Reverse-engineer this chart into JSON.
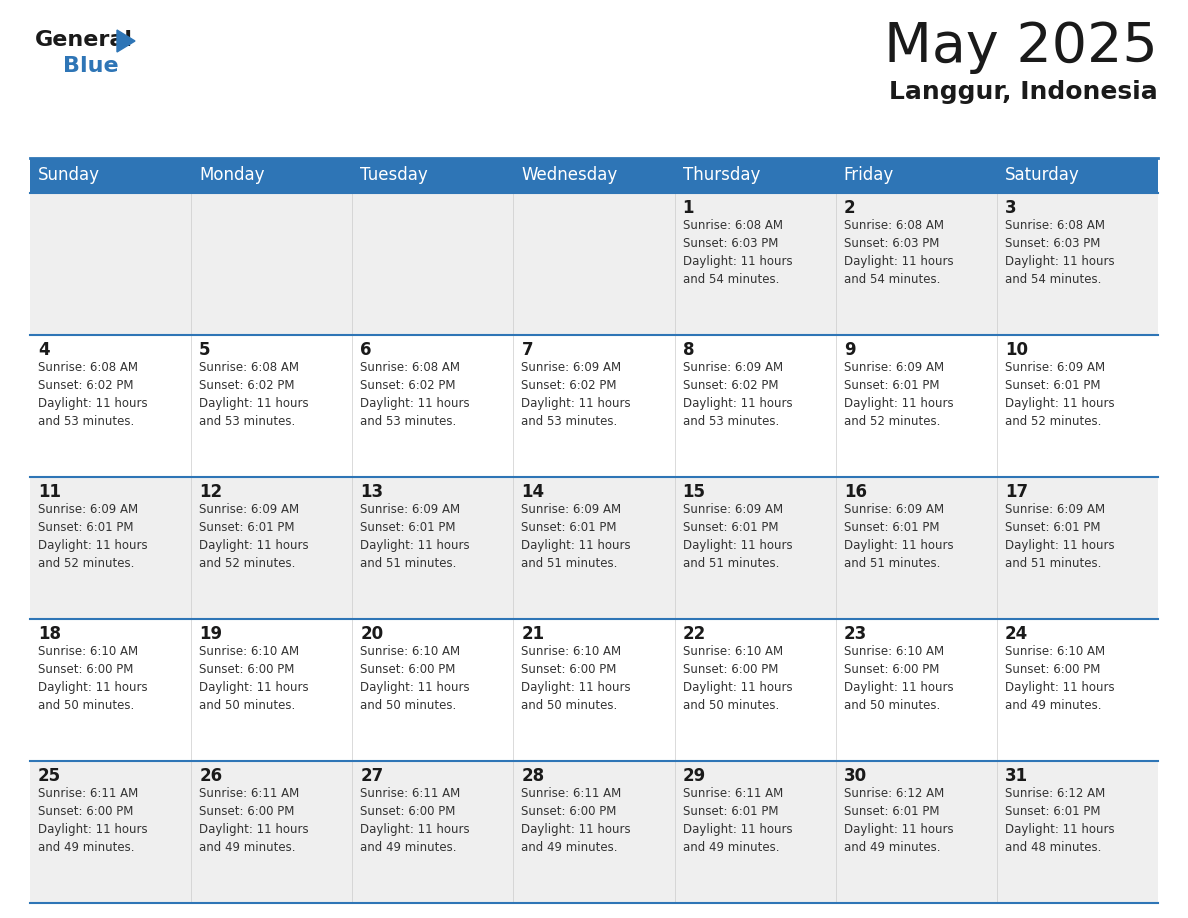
{
  "title": "May 2025",
  "subtitle": "Langgur, Indonesia",
  "header_color": "#2E75B6",
  "header_text_color": "#FFFFFF",
  "bg_color": "#FFFFFF",
  "cell_bg_light": "#EFEFEF",
  "cell_bg_white": "#FFFFFF",
  "day_headers": [
    "Sunday",
    "Monday",
    "Tuesday",
    "Wednesday",
    "Thursday",
    "Friday",
    "Saturday"
  ],
  "title_color": "#1a1a1a",
  "subtitle_color": "#1a1a1a",
  "number_color": "#1a1a1a",
  "text_color": "#333333",
  "grid_line_color": "#2E75B6",
  "sep_line_color": "#AAAAAA",
  "calendar": [
    [
      {
        "day": "",
        "info": ""
      },
      {
        "day": "",
        "info": ""
      },
      {
        "day": "",
        "info": ""
      },
      {
        "day": "",
        "info": ""
      },
      {
        "day": "1",
        "info": "Sunrise: 6:08 AM\nSunset: 6:03 PM\nDaylight: 11 hours\nand 54 minutes."
      },
      {
        "day": "2",
        "info": "Sunrise: 6:08 AM\nSunset: 6:03 PM\nDaylight: 11 hours\nand 54 minutes."
      },
      {
        "day": "3",
        "info": "Sunrise: 6:08 AM\nSunset: 6:03 PM\nDaylight: 11 hours\nand 54 minutes."
      }
    ],
    [
      {
        "day": "4",
        "info": "Sunrise: 6:08 AM\nSunset: 6:02 PM\nDaylight: 11 hours\nand 53 minutes."
      },
      {
        "day": "5",
        "info": "Sunrise: 6:08 AM\nSunset: 6:02 PM\nDaylight: 11 hours\nand 53 minutes."
      },
      {
        "day": "6",
        "info": "Sunrise: 6:08 AM\nSunset: 6:02 PM\nDaylight: 11 hours\nand 53 minutes."
      },
      {
        "day": "7",
        "info": "Sunrise: 6:09 AM\nSunset: 6:02 PM\nDaylight: 11 hours\nand 53 minutes."
      },
      {
        "day": "8",
        "info": "Sunrise: 6:09 AM\nSunset: 6:02 PM\nDaylight: 11 hours\nand 53 minutes."
      },
      {
        "day": "9",
        "info": "Sunrise: 6:09 AM\nSunset: 6:01 PM\nDaylight: 11 hours\nand 52 minutes."
      },
      {
        "day": "10",
        "info": "Sunrise: 6:09 AM\nSunset: 6:01 PM\nDaylight: 11 hours\nand 52 minutes."
      }
    ],
    [
      {
        "day": "11",
        "info": "Sunrise: 6:09 AM\nSunset: 6:01 PM\nDaylight: 11 hours\nand 52 minutes."
      },
      {
        "day": "12",
        "info": "Sunrise: 6:09 AM\nSunset: 6:01 PM\nDaylight: 11 hours\nand 52 minutes."
      },
      {
        "day": "13",
        "info": "Sunrise: 6:09 AM\nSunset: 6:01 PM\nDaylight: 11 hours\nand 51 minutes."
      },
      {
        "day": "14",
        "info": "Sunrise: 6:09 AM\nSunset: 6:01 PM\nDaylight: 11 hours\nand 51 minutes."
      },
      {
        "day": "15",
        "info": "Sunrise: 6:09 AM\nSunset: 6:01 PM\nDaylight: 11 hours\nand 51 minutes."
      },
      {
        "day": "16",
        "info": "Sunrise: 6:09 AM\nSunset: 6:01 PM\nDaylight: 11 hours\nand 51 minutes."
      },
      {
        "day": "17",
        "info": "Sunrise: 6:09 AM\nSunset: 6:01 PM\nDaylight: 11 hours\nand 51 minutes."
      }
    ],
    [
      {
        "day": "18",
        "info": "Sunrise: 6:10 AM\nSunset: 6:00 PM\nDaylight: 11 hours\nand 50 minutes."
      },
      {
        "day": "19",
        "info": "Sunrise: 6:10 AM\nSunset: 6:00 PM\nDaylight: 11 hours\nand 50 minutes."
      },
      {
        "day": "20",
        "info": "Sunrise: 6:10 AM\nSunset: 6:00 PM\nDaylight: 11 hours\nand 50 minutes."
      },
      {
        "day": "21",
        "info": "Sunrise: 6:10 AM\nSunset: 6:00 PM\nDaylight: 11 hours\nand 50 minutes."
      },
      {
        "day": "22",
        "info": "Sunrise: 6:10 AM\nSunset: 6:00 PM\nDaylight: 11 hours\nand 50 minutes."
      },
      {
        "day": "23",
        "info": "Sunrise: 6:10 AM\nSunset: 6:00 PM\nDaylight: 11 hours\nand 50 minutes."
      },
      {
        "day": "24",
        "info": "Sunrise: 6:10 AM\nSunset: 6:00 PM\nDaylight: 11 hours\nand 49 minutes."
      }
    ],
    [
      {
        "day": "25",
        "info": "Sunrise: 6:11 AM\nSunset: 6:00 PM\nDaylight: 11 hours\nand 49 minutes."
      },
      {
        "day": "26",
        "info": "Sunrise: 6:11 AM\nSunset: 6:00 PM\nDaylight: 11 hours\nand 49 minutes."
      },
      {
        "day": "27",
        "info": "Sunrise: 6:11 AM\nSunset: 6:00 PM\nDaylight: 11 hours\nand 49 minutes."
      },
      {
        "day": "28",
        "info": "Sunrise: 6:11 AM\nSunset: 6:00 PM\nDaylight: 11 hours\nand 49 minutes."
      },
      {
        "day": "29",
        "info": "Sunrise: 6:11 AM\nSunset: 6:01 PM\nDaylight: 11 hours\nand 49 minutes."
      },
      {
        "day": "30",
        "info": "Sunrise: 6:12 AM\nSunset: 6:01 PM\nDaylight: 11 hours\nand 49 minutes."
      },
      {
        "day": "31",
        "info": "Sunrise: 6:12 AM\nSunset: 6:01 PM\nDaylight: 11 hours\nand 48 minutes."
      }
    ]
  ]
}
